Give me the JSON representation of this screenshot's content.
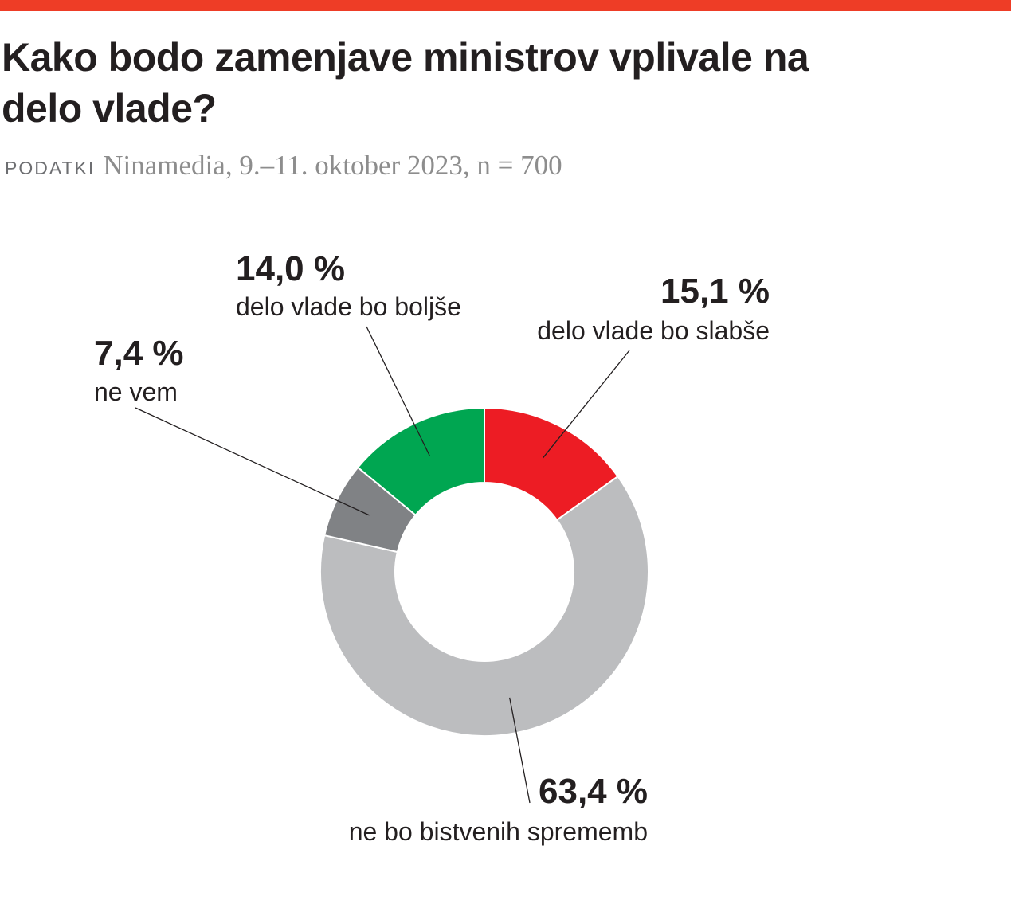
{
  "colors": {
    "top_bar": "#ee3d26",
    "slabse": "#ed1c24",
    "nespremenjeno": "#bcbdbf",
    "ne_vem": "#808285",
    "boljse": "#00a651"
  },
  "header": {
    "title": "Kako bodo zamenjave ministrov vplivale na delo vlade?",
    "source_label": "PODATKI",
    "source_text": "Ninamedia, 9.–11. oktober 2023, n = 700"
  },
  "chart_data": {
    "type": "pie",
    "variant": "donut",
    "title": "Kako bodo zamenjave ministrov vplivale na delo vlade?",
    "unit": "%",
    "slices": [
      {
        "key": "slabse",
        "label": "delo vlade bo slabše",
        "value": 15.1,
        "value_label": "15,1 %",
        "color": "#ed1c24"
      },
      {
        "key": "nespremenjeno",
        "label": "ne bo bistvenih sprememb",
        "value": 63.4,
        "value_label": "63,4 %",
        "color": "#bcbdbf"
      },
      {
        "key": "ne_vem",
        "label": "ne vem",
        "value": 7.4,
        "value_label": "7,4 %",
        "color": "#808285"
      },
      {
        "key": "boljse",
        "label": "delo vlade bo boljše",
        "value": 14.0,
        "value_label": "14,0 %",
        "color": "#00a651"
      }
    ]
  }
}
